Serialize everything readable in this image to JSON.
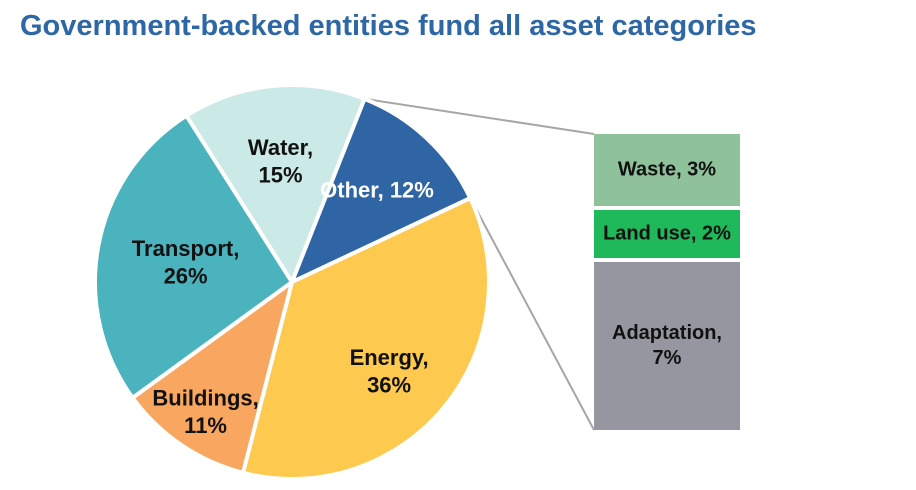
{
  "title": "Government-backed entities fund all asset categories",
  "chart_data": {
    "type": "pie",
    "title": "Government-backed entities fund all asset categories",
    "slices": [
      {
        "label": "Energy",
        "value": 36,
        "color": "#fdc94f",
        "label_color": "#111111"
      },
      {
        "label": "Buildings",
        "value": 11,
        "color": "#f9a760",
        "label_color": "#111111"
      },
      {
        "label": "Transport",
        "value": 26,
        "color": "#4ab3bd",
        "label_color": "#111111"
      },
      {
        "label": "Water",
        "value": 15,
        "color": "#cbe9e6",
        "label_color": "#111111"
      },
      {
        "label": "Other",
        "value": 12,
        "color": "#2f65a5",
        "label_color": "#ffffff"
      }
    ],
    "breakdown": {
      "of": "Other",
      "type": "stacked_bar",
      "segments": [
        {
          "label": "Waste",
          "value": 3,
          "color": "#8fc19a"
        },
        {
          "label": "Land use",
          "value": 2,
          "color": "#1fb85a"
        },
        {
          "label": "Adaptation",
          "value": 7,
          "color": "#9596a0"
        }
      ]
    }
  }
}
